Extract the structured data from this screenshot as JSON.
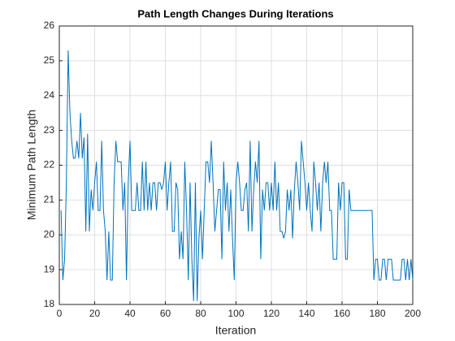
{
  "chart_data": {
    "type": "line",
    "title": "Path Length Changes During Iterations",
    "xlabel": "Iteration",
    "ylabel": "Minimum Path Length",
    "x": [
      1,
      2,
      3,
      4,
      5,
      6,
      7,
      8,
      9,
      10,
      11,
      12,
      13,
      14,
      15,
      16,
      17,
      18,
      19,
      20,
      21,
      22,
      23,
      24,
      25,
      26,
      27,
      28,
      29,
      30,
      31,
      32,
      33,
      34,
      35,
      36,
      37,
      38,
      39,
      40,
      41,
      42,
      43,
      44,
      45,
      46,
      47,
      48,
      49,
      50,
      51,
      52,
      53,
      54,
      55,
      56,
      57,
      58,
      59,
      60,
      61,
      62,
      63,
      64,
      65,
      66,
      67,
      68,
      69,
      70,
      71,
      72,
      73,
      74,
      75,
      76,
      77,
      78,
      79,
      80,
      81,
      82,
      83,
      84,
      85,
      86,
      87,
      88,
      89,
      90,
      91,
      92,
      93,
      94,
      95,
      96,
      97,
      98,
      99,
      100,
      101,
      102,
      103,
      104,
      105,
      106,
      107,
      108,
      109,
      110,
      111,
      112,
      113,
      114,
      115,
      116,
      117,
      118,
      119,
      120,
      121,
      122,
      123,
      124,
      125,
      126,
      127,
      128,
      129,
      130,
      131,
      132,
      133,
      134,
      135,
      136,
      137,
      138,
      139,
      140,
      141,
      142,
      143,
      144,
      145,
      146,
      147,
      148,
      149,
      150,
      151,
      152,
      153,
      154,
      155,
      156,
      157,
      158,
      159,
      160,
      161,
      162,
      163,
      164,
      165,
      166,
      167,
      168,
      169,
      170,
      171,
      172,
      173,
      174,
      175,
      176,
      177,
      178,
      179,
      180,
      181,
      182,
      183,
      184,
      185,
      186,
      187,
      188,
      189,
      190,
      191,
      192,
      193,
      194,
      195,
      196,
      197,
      198,
      199,
      200
    ],
    "series": [
      {
        "name": "Minimum Path Length",
        "color": "#0072bd",
        "values": [
          20.7,
          18.7,
          19.3,
          21.5,
          25.3,
          23.5,
          22.7,
          22.2,
          22.2,
          22.7,
          22.2,
          23.5,
          22.2,
          22.8,
          20.1,
          22.9,
          20.1,
          21.3,
          20.7,
          21.5,
          22.1,
          20.7,
          20.7,
          22.7,
          20.7,
          20.1,
          18.7,
          20.1,
          18.7,
          18.7,
          21.5,
          22.7,
          22.1,
          22.1,
          22.1,
          20.7,
          21.5,
          18.7,
          21.5,
          22.7,
          20.7,
          20.7,
          20.7,
          21.5,
          20.7,
          20.7,
          22.1,
          20.7,
          22.1,
          20.7,
          21.5,
          20.7,
          21.5,
          21.5,
          20.7,
          21.5,
          21.5,
          21.3,
          21.5,
          22.1,
          20.7,
          21.5,
          22.1,
          20.1,
          20.1,
          21.5,
          21.3,
          19.3,
          20.1,
          19.3,
          22.1,
          20.7,
          18.7,
          21.5,
          19.3,
          18.1,
          21.5,
          18.1,
          19.9,
          20.7,
          19.3,
          20.7,
          22.1,
          22.1,
          21.5,
          22.7,
          21.5,
          20.1,
          20.7,
          21.3,
          21.3,
          19.3,
          22.1,
          20.7,
          21.5,
          20.1,
          21.3,
          19.9,
          18.7,
          21.5,
          22.1,
          21.5,
          20.7,
          20.7,
          21.3,
          21.5,
          20.1,
          22.7,
          20.1,
          21.3,
          22.1,
          21.5,
          22.7,
          19.3,
          21.3,
          20.7,
          21.5,
          21.5,
          20.7,
          21.5,
          20.7,
          22.1,
          20.7,
          21.5,
          20.1,
          20.1,
          19.9,
          20.1,
          21.3,
          20.7,
          21.3,
          19.9,
          21.3,
          22.1,
          21.5,
          20.7,
          22.7,
          22.1,
          21.5,
          20.7,
          21.5,
          20.7,
          20.1,
          22.1,
          21.5,
          20.7,
          21.5,
          20.1,
          21.5,
          22.1,
          21.5,
          22.1,
          20.7,
          20.7,
          19.3,
          19.3,
          19.3,
          21.5,
          20.7,
          21.5,
          21.5,
          19.3,
          19.3,
          21.3,
          20.7,
          20.7,
          20.7,
          20.7,
          20.7,
          20.7,
          20.7,
          20.7,
          20.7,
          20.7,
          20.7,
          20.7,
          20.7,
          18.7,
          19.3,
          19.3,
          18.7,
          18.7,
          19.3,
          19.3,
          18.7,
          19.3,
          19.3,
          19.3,
          18.7,
          18.7,
          18.7,
          18.7,
          18.7,
          19.3,
          19.3,
          18.7,
          19.3,
          18.7,
          19.3,
          18.7
        ]
      }
    ],
    "xlim": [
      0,
      200
    ],
    "xticks": [
      0,
      20,
      40,
      60,
      80,
      100,
      120,
      140,
      160,
      180,
      200
    ],
    "ylim": [
      18,
      26
    ],
    "yticks": [
      18,
      19,
      20,
      21,
      22,
      23,
      24,
      25,
      26
    ],
    "grid": true
  }
}
